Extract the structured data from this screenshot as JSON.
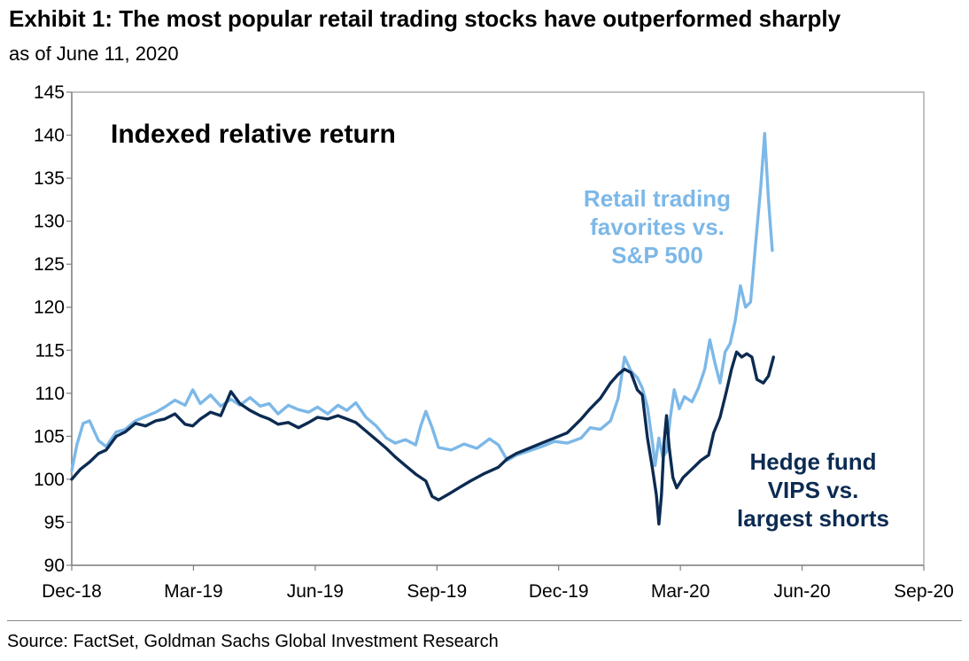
{
  "header": {
    "title": "Exhibit 1: The most popular retail trading stocks have outperformed sharply",
    "subtitle": "as of June 11, 2020"
  },
  "footer": {
    "source": "Source: FactSet, Goldman Sachs Global Investment Research"
  },
  "chart_data": {
    "type": "line",
    "title": "",
    "inner_label": "Indexed relative return",
    "xlabel": "",
    "ylabel": "",
    "ylim": [
      90,
      145
    ],
    "yticks": [
      90,
      95,
      100,
      105,
      110,
      115,
      120,
      125,
      130,
      135,
      140,
      145
    ],
    "xlim": [
      "2018-12-01",
      "2020-09-30"
    ],
    "xticks": [
      "Dec-18",
      "Mar-19",
      "Jun-19",
      "Sep-19",
      "Dec-19",
      "Mar-20",
      "Jun-20",
      "Sep-20"
    ],
    "grid": false,
    "legend": "none",
    "series": [
      {
        "name": "Retail trading favorites vs. S&P 500",
        "label_lines": [
          "Retail trading",
          "favorites vs.",
          "S&P 500"
        ],
        "color": "#7cb8e8",
        "points": [
          [
            "2018-12-01",
            101
          ],
          [
            "2018-12-05",
            104
          ],
          [
            "2018-12-10",
            106.5
          ],
          [
            "2018-12-15",
            106.8
          ],
          [
            "2018-12-22",
            104.5
          ],
          [
            "2018-12-28",
            103.8
          ],
          [
            "2019-01-05",
            105.5
          ],
          [
            "2019-01-12",
            105.8
          ],
          [
            "2019-01-20",
            106.8
          ],
          [
            "2019-01-28",
            107.3
          ],
          [
            "2019-02-05",
            107.8
          ],
          [
            "2019-02-12",
            108.4
          ],
          [
            "2019-02-20",
            109.2
          ],
          [
            "2019-02-28",
            108.6
          ],
          [
            "2019-03-06",
            110.4
          ],
          [
            "2019-03-12",
            108.8
          ],
          [
            "2019-03-20",
            109.8
          ],
          [
            "2019-03-28",
            108.5
          ],
          [
            "2019-04-05",
            109.3
          ],
          [
            "2019-04-12",
            108.6
          ],
          [
            "2019-04-20",
            109.5
          ],
          [
            "2019-04-28",
            108.5
          ],
          [
            "2019-05-05",
            108.8
          ],
          [
            "2019-05-12",
            107.6
          ],
          [
            "2019-05-20",
            108.6
          ],
          [
            "2019-05-28",
            108.1
          ],
          [
            "2019-06-05",
            107.8
          ],
          [
            "2019-06-12",
            108.4
          ],
          [
            "2019-06-20",
            107.6
          ],
          [
            "2019-06-28",
            108.6
          ],
          [
            "2019-07-05",
            108.0
          ],
          [
            "2019-07-12",
            108.9
          ],
          [
            "2019-07-20",
            107.2
          ],
          [
            "2019-07-28",
            106.2
          ],
          [
            "2019-08-05",
            104.8
          ],
          [
            "2019-08-12",
            104.2
          ],
          [
            "2019-08-20",
            104.6
          ],
          [
            "2019-08-28",
            104.0
          ],
          [
            "2019-09-01",
            106.2
          ],
          [
            "2019-09-05",
            107.9
          ],
          [
            "2019-09-10",
            106.0
          ],
          [
            "2019-09-15",
            103.7
          ],
          [
            "2019-09-25",
            103.4
          ],
          [
            "2019-10-05",
            104.1
          ],
          [
            "2019-10-15",
            103.6
          ],
          [
            "2019-10-25",
            104.7
          ],
          [
            "2019-11-01",
            104.0
          ],
          [
            "2019-11-08",
            102.2
          ],
          [
            "2019-11-15",
            102.8
          ],
          [
            "2019-11-25",
            103.3
          ],
          [
            "2019-12-05",
            103.8
          ],
          [
            "2019-12-15",
            104.4
          ],
          [
            "2019-12-25",
            104.2
          ],
          [
            "2020-01-05",
            104.8
          ],
          [
            "2020-01-12",
            106.0
          ],
          [
            "2020-01-20",
            105.8
          ],
          [
            "2020-01-28",
            106.8
          ],
          [
            "2020-02-03",
            109.4
          ],
          [
            "2020-02-08",
            114.2
          ],
          [
            "2020-02-13",
            112.6
          ],
          [
            "2020-02-18",
            111.8
          ],
          [
            "2020-02-22",
            110.6
          ],
          [
            "2020-02-26",
            108.4
          ],
          [
            "2020-03-01",
            104.2
          ],
          [
            "2020-03-03",
            101.6
          ],
          [
            "2020-03-06",
            104.8
          ],
          [
            "2020-03-09",
            102.6
          ],
          [
            "2020-03-12",
            103.2
          ],
          [
            "2020-03-15",
            107.2
          ],
          [
            "2020-03-18",
            110.4
          ],
          [
            "2020-03-22",
            108.2
          ],
          [
            "2020-03-26",
            109.6
          ],
          [
            "2020-04-01",
            109.0
          ],
          [
            "2020-04-06",
            110.6
          ],
          [
            "2020-04-11",
            112.8
          ],
          [
            "2020-04-15",
            116.2
          ],
          [
            "2020-04-19",
            113.5
          ],
          [
            "2020-04-23",
            111.2
          ],
          [
            "2020-04-27",
            114.8
          ],
          [
            "2020-05-01",
            115.8
          ],
          [
            "2020-05-05",
            118.5
          ],
          [
            "2020-05-09",
            122.5
          ],
          [
            "2020-05-13",
            120.0
          ],
          [
            "2020-05-17",
            120.6
          ],
          [
            "2020-05-21",
            127.5
          ],
          [
            "2020-05-25",
            134.0
          ],
          [
            "2020-05-28",
            140.2
          ],
          [
            "2020-05-31",
            132.5
          ],
          [
            "2020-06-03",
            126.6
          ]
        ]
      },
      {
        "name": "Hedge fund VIPS vs. largest shorts",
        "label_lines": [
          "Hedge fund",
          "VIPS vs.",
          "largest shorts"
        ],
        "color": "#0c2b52",
        "points": [
          [
            "2018-12-01",
            100.0
          ],
          [
            "2018-12-08",
            101.2
          ],
          [
            "2018-12-15",
            102.0
          ],
          [
            "2018-12-22",
            103.0
          ],
          [
            "2018-12-28",
            103.4
          ],
          [
            "2019-01-05",
            105.0
          ],
          [
            "2019-01-12",
            105.5
          ],
          [
            "2019-01-20",
            106.5
          ],
          [
            "2019-01-28",
            106.2
          ],
          [
            "2019-02-05",
            106.8
          ],
          [
            "2019-02-12",
            107.0
          ],
          [
            "2019-02-20",
            107.6
          ],
          [
            "2019-02-28",
            106.4
          ],
          [
            "2019-03-06",
            106.2
          ],
          [
            "2019-03-12",
            107.0
          ],
          [
            "2019-03-20",
            107.8
          ],
          [
            "2019-03-28",
            107.4
          ],
          [
            "2019-04-05",
            110.2
          ],
          [
            "2019-04-12",
            108.8
          ],
          [
            "2019-04-20",
            108.0
          ],
          [
            "2019-04-28",
            107.4
          ],
          [
            "2019-05-05",
            107.0
          ],
          [
            "2019-05-12",
            106.4
          ],
          [
            "2019-05-20",
            106.6
          ],
          [
            "2019-05-28",
            106.0
          ],
          [
            "2019-06-05",
            106.6
          ],
          [
            "2019-06-12",
            107.2
          ],
          [
            "2019-06-20",
            107.0
          ],
          [
            "2019-06-28",
            107.4
          ],
          [
            "2019-07-05",
            107.0
          ],
          [
            "2019-07-12",
            106.6
          ],
          [
            "2019-07-20",
            105.6
          ],
          [
            "2019-07-28",
            104.6
          ],
          [
            "2019-08-05",
            103.6
          ],
          [
            "2019-08-12",
            102.6
          ],
          [
            "2019-08-20",
            101.6
          ],
          [
            "2019-08-28",
            100.6
          ],
          [
            "2019-09-05",
            99.8
          ],
          [
            "2019-09-10",
            98.0
          ],
          [
            "2019-09-15",
            97.6
          ],
          [
            "2019-09-22",
            98.2
          ],
          [
            "2019-10-01",
            99.0
          ],
          [
            "2019-10-10",
            99.8
          ],
          [
            "2019-10-20",
            100.6
          ],
          [
            "2019-11-01",
            101.4
          ],
          [
            "2019-11-08",
            102.4
          ],
          [
            "2019-11-15",
            103.0
          ],
          [
            "2019-11-25",
            103.6
          ],
          [
            "2019-12-05",
            104.2
          ],
          [
            "2019-12-15",
            104.8
          ],
          [
            "2019-12-25",
            105.4
          ],
          [
            "2020-01-05",
            107.0
          ],
          [
            "2020-01-12",
            108.2
          ],
          [
            "2020-01-20",
            109.4
          ],
          [
            "2020-01-28",
            111.2
          ],
          [
            "2020-02-03",
            112.2
          ],
          [
            "2020-02-08",
            112.8
          ],
          [
            "2020-02-13",
            112.4
          ],
          [
            "2020-02-18",
            110.4
          ],
          [
            "2020-02-22",
            109.8
          ],
          [
            "2020-02-26",
            104.8
          ],
          [
            "2020-03-01",
            101.2
          ],
          [
            "2020-03-04",
            98.2
          ],
          [
            "2020-03-06",
            94.8
          ],
          [
            "2020-03-08",
            98.2
          ],
          [
            "2020-03-10",
            104.2
          ],
          [
            "2020-03-12",
            107.4
          ],
          [
            "2020-03-14",
            103.8
          ],
          [
            "2020-03-17",
            100.2
          ],
          [
            "2020-03-20",
            99.0
          ],
          [
            "2020-03-25",
            100.2
          ],
          [
            "2020-04-01",
            101.2
          ],
          [
            "2020-04-08",
            102.2
          ],
          [
            "2020-04-14",
            102.8
          ],
          [
            "2020-04-18",
            105.4
          ],
          [
            "2020-04-23",
            107.2
          ],
          [
            "2020-04-28",
            110.2
          ],
          [
            "2020-05-02",
            112.8
          ],
          [
            "2020-05-06",
            114.8
          ],
          [
            "2020-05-10",
            114.2
          ],
          [
            "2020-05-14",
            114.6
          ],
          [
            "2020-05-18",
            114.2
          ],
          [
            "2020-05-22",
            111.6
          ],
          [
            "2020-05-27",
            111.2
          ],
          [
            "2020-05-31",
            112.0
          ],
          [
            "2020-06-04",
            114.2
          ]
        ]
      }
    ]
  }
}
